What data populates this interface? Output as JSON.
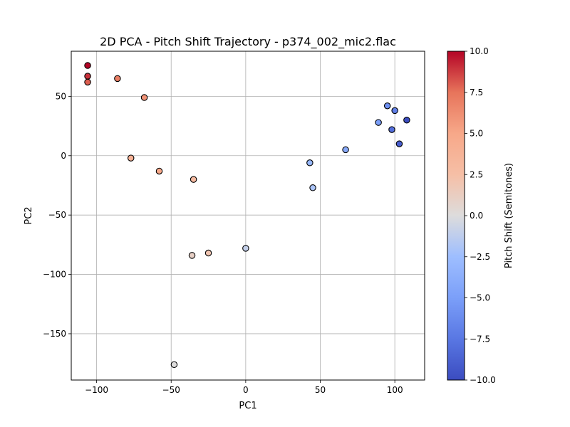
{
  "chart_data": {
    "type": "scatter",
    "title": "2D PCA - Pitch Shift Trajectory - p374_002_mic2.flac",
    "xlabel": "PC1",
    "ylabel": "PC2",
    "xlim": [
      -117,
      120
    ],
    "ylim": [
      -189,
      88
    ],
    "xticks": [
      -100,
      -50,
      0,
      50,
      100
    ],
    "yticks": [
      50,
      0,
      -50,
      -100,
      -150
    ],
    "xtick_labels": [
      "−100",
      "−50",
      "0",
      "50",
      "100"
    ],
    "ytick_labels": [
      "50",
      "0",
      "−50",
      "−100",
      "−150"
    ],
    "grid": true,
    "colorbar": {
      "label": "Pitch Shift (Semitones)",
      "range": [
        -10,
        10
      ],
      "colormap": "coolwarm",
      "ticks": [
        10,
        7.5,
        5,
        2.5,
        0,
        -2.5,
        -5,
        -7.5,
        -10
      ],
      "tick_labels": [
        "10.0",
        "7.5",
        "5.0",
        "2.5",
        "0.0",
        "−2.5",
        "−5.0",
        "−7.5",
        "−10.0"
      ]
    },
    "points": [
      {
        "x": -106,
        "y": 76,
        "c": 10
      },
      {
        "x": -106,
        "y": 67,
        "c": 9
      },
      {
        "x": -106,
        "y": 62,
        "c": 8
      },
      {
        "x": -86,
        "y": 65,
        "c": 7
      },
      {
        "x": -68,
        "y": 49,
        "c": 6
      },
      {
        "x": -77,
        "y": -2,
        "c": 4
      },
      {
        "x": -58,
        "y": -13,
        "c": 5
      },
      {
        "x": -35,
        "y": -20,
        "c": 3
      },
      {
        "x": -25,
        "y": -82,
        "c": 2
      },
      {
        "x": -36,
        "y": -84,
        "c": 1
      },
      {
        "x": 0,
        "y": -78,
        "c": -1
      },
      {
        "x": -48,
        "y": -176,
        "c": 0
      },
      {
        "x": 43,
        "y": -6,
        "c": -3
      },
      {
        "x": 45,
        "y": -27,
        "c": -2
      },
      {
        "x": 67,
        "y": 5,
        "c": -4
      },
      {
        "x": 89,
        "y": 28,
        "c": -5
      },
      {
        "x": 95,
        "y": 42,
        "c": -6
      },
      {
        "x": 100,
        "y": 38,
        "c": -7
      },
      {
        "x": 98,
        "y": 22,
        "c": -8
      },
      {
        "x": 103,
        "y": 10,
        "c": -9
      },
      {
        "x": 108,
        "y": 30,
        "c": -10
      }
    ]
  }
}
